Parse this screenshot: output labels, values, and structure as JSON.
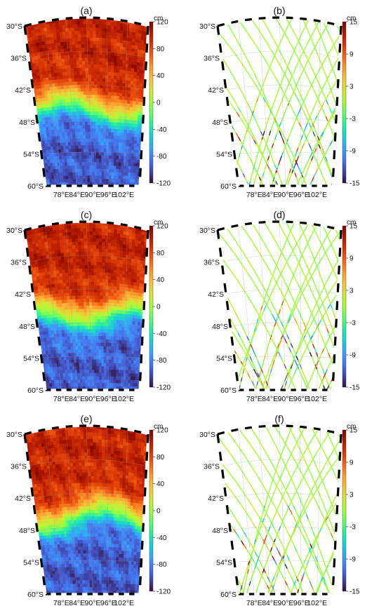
{
  "figure": {
    "panels": [
      {
        "label": "(a)",
        "kind": "field"
      },
      {
        "label": "(b)",
        "kind": "tracks"
      },
      {
        "label": "(c)",
        "kind": "field"
      },
      {
        "label": "(d)",
        "kind": "tracks"
      },
      {
        "label": "(e)",
        "kind": "field"
      },
      {
        "label": "(f)",
        "kind": "tracks"
      }
    ],
    "lat_labels": [
      "30°S",
      "36°S",
      "42°S",
      "48°S",
      "54°S",
      "60°S"
    ],
    "lon_labels": [
      "78°E",
      "84°E",
      "90°E",
      "96°E",
      "102°E"
    ],
    "lat_range": [
      -60,
      -30
    ],
    "lon_range": [
      72,
      108
    ],
    "field_colorbar": {
      "unit": "cm",
      "ticks": [
        "120",
        "80",
        "40",
        "0",
        "-40",
        "-80",
        "-120"
      ],
      "range": [
        -120,
        120
      ]
    },
    "tracks_colorbar": {
      "unit": "cm",
      "ticks": [
        "15",
        "9",
        "3",
        "-3",
        "-9",
        "-15"
      ],
      "range": [
        -15,
        15
      ]
    },
    "colormap": [
      "#30123b",
      "#4145ab",
      "#4675ed",
      "#39a2fc",
      "#1bcfd4",
      "#24eca6",
      "#61fc6c",
      "#a4fc3b",
      "#d1e834",
      "#f3c63a",
      "#fe9b2d",
      "#f36315",
      "#d93806",
      "#b11901",
      "#7a0402"
    ]
  }
}
